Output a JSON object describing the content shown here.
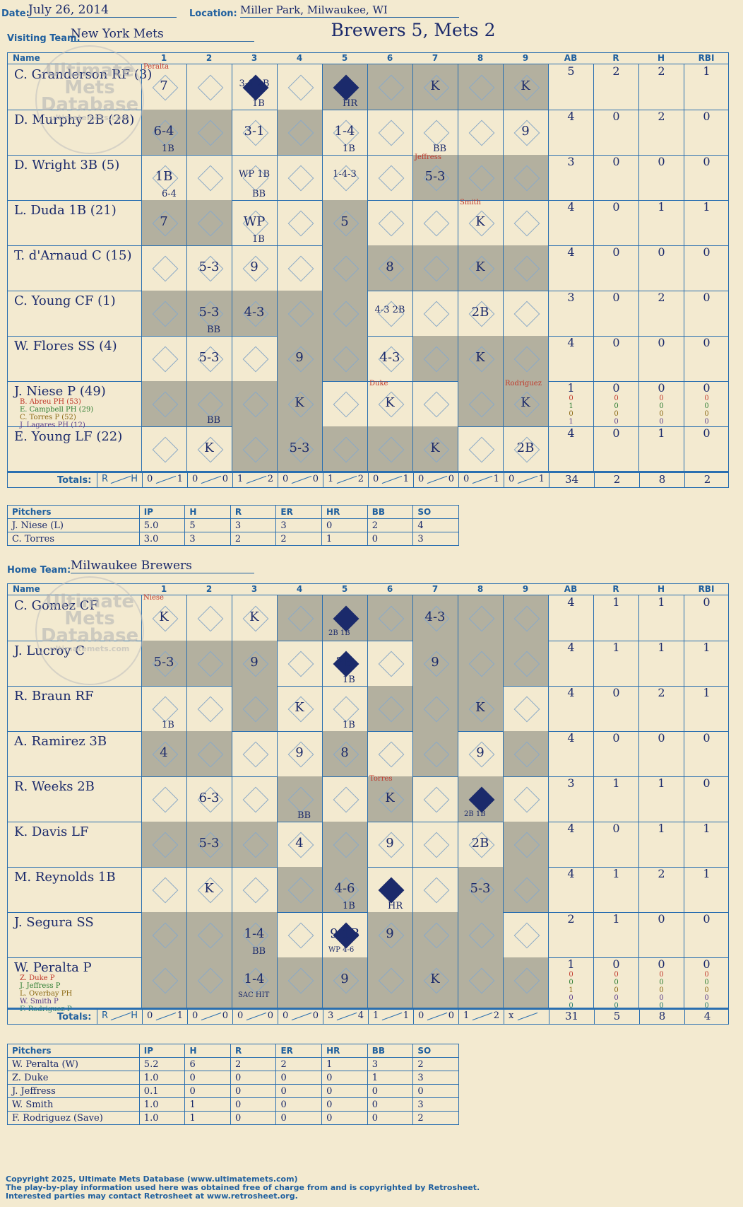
{
  "header": {
    "date_label": "Date:",
    "date": "July 26, 2014",
    "location_label": "Location:",
    "location": "Miller Park, Milwaukee, WI",
    "visiting_label": "Visiting Team:",
    "visiting_team": "New York Mets",
    "home_label": "Home Team:",
    "home_team": "Milwaukee Brewers",
    "result": "Brewers 5, Mets 2"
  },
  "columns": {
    "name": "Name",
    "innings": [
      "1",
      "2",
      "3",
      "4",
      "5",
      "6",
      "7",
      "8",
      "9"
    ],
    "stats": [
      "AB",
      "R",
      "H",
      "RBI"
    ]
  },
  "watermark": {
    "line1": "Ultimate",
    "line2": "Mets",
    "line3": "Database",
    "url": "ultimatemets.com"
  },
  "away": {
    "gray": [
      [
        1,
        3,
        5,
        7
      ],
      [
        1,
        3,
        5,
        7
      ],
      [
        5,
        7,
        8
      ],
      [
        1,
        5,
        6,
        7,
        8
      ],
      [
        0,
        3,
        4,
        5,
        6,
        8
      ],
      [
        0,
        4,
        8
      ],
      [
        0,
        2,
        4,
        6,
        8
      ],
      [
        0,
        2,
        4,
        6,
        7
      ],
      [
        0,
        2,
        4,
        6,
        7
      ]
    ],
    "rows": [
      {
        "name": "C. Granderson RF (3)",
        "stats": [
          "5",
          "2",
          "2",
          "1"
        ],
        "plays": [
          {
            "i": 0,
            "t": "7",
            "p": "Peralta"
          },
          {
            "i": 2,
            "t": "3-1 2B",
            "s": "1B",
            "sc": true
          },
          {
            "i": 4,
            "s": "HR",
            "sc": true
          },
          {
            "i": 6,
            "t": "K"
          },
          {
            "i": 8,
            "t": "K"
          }
        ]
      },
      {
        "name": "D. Murphy 2B (28)",
        "stats": [
          "4",
          "0",
          "2",
          "0"
        ],
        "plays": [
          {
            "i": 0,
            "t": "6-4",
            "s": "1B"
          },
          {
            "i": 2,
            "t": "3-1"
          },
          {
            "i": 4,
            "t": "1-4",
            "s": "1B"
          },
          {
            "i": 6,
            "s": "BB"
          },
          {
            "i": 8,
            "t": "9"
          }
        ]
      },
      {
        "name": "D. Wright 3B (5)",
        "stats": [
          "3",
          "0",
          "0",
          "0"
        ],
        "plays": [
          {
            "i": 0,
            "t": "1B",
            "s": "6-4"
          },
          {
            "i": 2,
            "t": "WP 1B",
            "s": "BB"
          },
          {
            "i": 4,
            "t": "1-4-3"
          },
          {
            "i": 6,
            "t": "5-3",
            "p": "Jeffress"
          }
        ]
      },
      {
        "name": "L. Duda 1B (21)",
        "stats": [
          "4",
          "0",
          "1",
          "1"
        ],
        "plays": [
          {
            "i": 0,
            "t": "7"
          },
          {
            "i": 2,
            "t": "WP",
            "s": "1B"
          },
          {
            "i": 4,
            "t": "5"
          },
          {
            "i": 7,
            "t": "K",
            "p": "Smith"
          }
        ]
      },
      {
        "name": "T. d'Arnaud C (15)",
        "stats": [
          "4",
          "0",
          "0",
          "0"
        ],
        "plays": [
          {
            "i": 1,
            "t": "5-3"
          },
          {
            "i": 2,
            "t": "9"
          },
          {
            "i": 5,
            "t": "8"
          },
          {
            "i": 7,
            "t": "K"
          }
        ]
      },
      {
        "name": "C. Young CF (1)",
        "stats": [
          "3",
          "0",
          "2",
          "0"
        ],
        "plays": [
          {
            "i": 1,
            "t": "5-3",
            "s": "BB"
          },
          {
            "i": 2,
            "t": "4-3"
          },
          {
            "i": 5,
            "t": "4-3 2B"
          },
          {
            "i": 7,
            "t": "2B"
          }
        ]
      },
      {
        "name": "W. Flores SS (4)",
        "stats": [
          "4",
          "0",
          "0",
          "0"
        ],
        "plays": [
          {
            "i": 1,
            "t": "5-3"
          },
          {
            "i": 3,
            "t": "9"
          },
          {
            "i": 5,
            "t": "4-3"
          },
          {
            "i": 7,
            "t": "K"
          }
        ]
      },
      {
        "name": "J. Niese P (49)",
        "stats": [
          "1",
          "0",
          "0",
          "0"
        ],
        "subs": [
          "B. Abreu PH (53)",
          "E. Campbell PH (29)",
          "C. Torres P (52)",
          "J. Lagares PH (12)"
        ],
        "substats": [
          [
            "0",
            "0",
            "0",
            "0"
          ],
          [
            "1",
            "0",
            "0",
            "0"
          ],
          [
            "0",
            "0",
            "0",
            "0"
          ],
          [
            "1",
            "0",
            "0",
            "0"
          ]
        ],
        "plays": [
          {
            "i": 1,
            "s": "BB"
          },
          {
            "i": 3,
            "t": "K"
          },
          {
            "i": 5,
            "t": "K",
            "p": "Duke"
          },
          {
            "i": 8,
            "t": "K",
            "p": "Rodriguez"
          }
        ]
      },
      {
        "name": "E. Young LF (22)",
        "stats": [
          "4",
          "0",
          "1",
          "0"
        ],
        "plays": [
          {
            "i": 1,
            "t": "K"
          },
          {
            "i": 3,
            "t": "5-3"
          },
          {
            "i": 6,
            "t": "K"
          },
          {
            "i": 8,
            "t": "2B"
          }
        ]
      }
    ],
    "totals": {
      "label": "Totals:",
      "r": "R",
      "h": "H",
      "innings": [
        [
          "0",
          "1"
        ],
        [
          "0",
          "0"
        ],
        [
          "1",
          "2"
        ],
        [
          "0",
          "0"
        ],
        [
          "1",
          "2"
        ],
        [
          "0",
          "1"
        ],
        [
          "0",
          "0"
        ],
        [
          "0",
          "1"
        ],
        [
          "0",
          "1"
        ]
      ],
      "stats": [
        "34",
        "2",
        "8",
        "2"
      ]
    }
  },
  "away_pitchers": {
    "headers": [
      "Pitchers",
      "IP",
      "H",
      "R",
      "ER",
      "HR",
      "BB",
      "SO"
    ],
    "rows": [
      [
        "J. Niese (L)",
        "5.0",
        "5",
        "3",
        "3",
        "0",
        "2",
        "4"
      ],
      [
        "C. Torres",
        "3.0",
        "3",
        "2",
        "2",
        "1",
        "0",
        "3"
      ]
    ]
  },
  "home": {
    "gray": [
      [
        1,
        3,
        5,
        7,
        8
      ],
      [
        1,
        3,
        5,
        7,
        8
      ],
      [
        1,
        2,
        5,
        7,
        8
      ],
      [
        0,
        4,
        6,
        8
      ],
      [
        0,
        3,
        5,
        6,
        8
      ],
      [
        0,
        2,
        4,
        7,
        8
      ],
      [
        0,
        1,
        2,
        3,
        7,
        8
      ],
      [
        0,
        1,
        2,
        4,
        6,
        7,
        8
      ],
      [
        0,
        1,
        3,
        5,
        6,
        8
      ]
    ],
    "rows": [
      {
        "name": "C. Gomez CF",
        "stats": [
          "4",
          "1",
          "1",
          "0"
        ],
        "plays": [
          {
            "i": 0,
            "t": "K",
            "p": "Niese"
          },
          {
            "i": 2,
            "t": "K"
          },
          {
            "i": 4,
            "s": "2B 1B",
            "sc": true
          },
          {
            "i": 6,
            "t": "4-3"
          }
        ]
      },
      {
        "name": "J. Lucroy C",
        "stats": [
          "4",
          "1",
          "1",
          "1"
        ],
        "plays": [
          {
            "i": 0,
            "t": "5-3"
          },
          {
            "i": 2,
            "t": "9"
          },
          {
            "i": 4,
            "t": "2B",
            "s": "1B",
            "sc": true
          },
          {
            "i": 6,
            "t": "9"
          }
        ]
      },
      {
        "name": "R. Braun RF",
        "stats": [
          "4",
          "0",
          "2",
          "1"
        ],
        "plays": [
          {
            "i": 0,
            "s": "1B"
          },
          {
            "i": 3,
            "t": "K"
          },
          {
            "i": 4,
            "s": "1B"
          },
          {
            "i": 7,
            "t": "K"
          }
        ]
      },
      {
        "name": "A. Ramirez 3B",
        "stats": [
          "4",
          "0",
          "0",
          "0"
        ],
        "plays": [
          {
            "i": 0,
            "t": "4"
          },
          {
            "i": 3,
            "t": "9"
          },
          {
            "i": 4,
            "t": "8"
          },
          {
            "i": 7,
            "t": "9"
          }
        ]
      },
      {
        "name": "R. Weeks 2B",
        "stats": [
          "3",
          "1",
          "1",
          "0"
        ],
        "plays": [
          {
            "i": 1,
            "t": "6-3"
          },
          {
            "i": 3,
            "s": "BB"
          },
          {
            "i": 5,
            "t": "K",
            "p": "Torres"
          },
          {
            "i": 7,
            "s": "2B 1B",
            "sc": true
          }
        ]
      },
      {
        "name": "K. Davis LF",
        "stats": [
          "4",
          "0",
          "1",
          "1"
        ],
        "plays": [
          {
            "i": 1,
            "t": "5-3"
          },
          {
            "i": 3,
            "t": "4"
          },
          {
            "i": 5,
            "t": "9"
          },
          {
            "i": 7,
            "t": "2B"
          }
        ]
      },
      {
        "name": "M. Reynolds 1B",
        "stats": [
          "4",
          "1",
          "2",
          "1"
        ],
        "plays": [
          {
            "i": 1,
            "t": "K"
          },
          {
            "i": 4,
            "t": "4-6",
            "s": "1B"
          },
          {
            "i": 5,
            "s": "HR",
            "sc": true
          },
          {
            "i": 7,
            "t": "5-3"
          }
        ]
      },
      {
        "name": "J. Segura SS",
        "stats": [
          "2",
          "1",
          "0",
          "0"
        ],
        "plays": [
          {
            "i": 2,
            "t": "1-4",
            "s": "BB"
          },
          {
            "i": 4,
            "t": "9 1B",
            "s": "WP 4-6",
            "sc": true
          },
          {
            "i": 5,
            "t": "9"
          }
        ]
      },
      {
        "name": "W. Peralta P",
        "stats": [
          "1",
          "0",
          "0",
          "0"
        ],
        "subs": [
          "Z. Duke P",
          "J. Jeffress P",
          "L. Overbay PH",
          "W. Smith P",
          "F. Rodriguez P"
        ],
        "substats": [
          [
            "0",
            "0",
            "0",
            "0"
          ],
          [
            "0",
            "0",
            "0",
            "0"
          ],
          [
            "1",
            "0",
            "0",
            "0"
          ],
          [
            "0",
            "0",
            "0",
            "0"
          ],
          [
            "0",
            "0",
            "0",
            "0"
          ]
        ],
        "plays": [
          {
            "i": 2,
            "t": "1-4",
            "s": "SAC HIT"
          },
          {
            "i": 4,
            "t": "9"
          },
          {
            "i": 6,
            "t": "K"
          }
        ]
      }
    ],
    "totals": {
      "label": "Totals:",
      "r": "R",
      "h": "H",
      "innings": [
        [
          "0",
          "1"
        ],
        [
          "0",
          "0"
        ],
        [
          "0",
          "0"
        ],
        [
          "0",
          "0"
        ],
        [
          "3",
          "4"
        ],
        [
          "1",
          "1"
        ],
        [
          "0",
          "0"
        ],
        [
          "1",
          "2"
        ],
        [
          "x",
          ""
        ]
      ],
      "stats": [
        "31",
        "5",
        "8",
        "4"
      ]
    }
  },
  "home_pitchers": {
    "headers": [
      "Pitchers",
      "IP",
      "H",
      "R",
      "ER",
      "HR",
      "BB",
      "SO"
    ],
    "rows": [
      [
        "W. Peralta (W)",
        "5.2",
        "6",
        "2",
        "2",
        "1",
        "3",
        "2"
      ],
      [
        "Z. Duke",
        "1.0",
        "0",
        "0",
        "0",
        "0",
        "1",
        "3"
      ],
      [
        "J. Jeffress",
        "0.1",
        "0",
        "0",
        "0",
        "0",
        "0",
        "0"
      ],
      [
        "W. Smith",
        "1.0",
        "1",
        "0",
        "0",
        "0",
        "0",
        "3"
      ],
      [
        "F. Rodriguez (Save)",
        "1.0",
        "1",
        "0",
        "0",
        "0",
        "0",
        "2"
      ]
    ]
  },
  "footer": {
    "line1": "Copyright 2025, Ultimate Mets Database (www.ultimatemets.com)",
    "line2": "The play-by-play information used here was obtained free of charge from and is copyrighted by Retrosheet.",
    "line3": "Interested parties may contact Retrosheet at www.retrosheet.org."
  }
}
